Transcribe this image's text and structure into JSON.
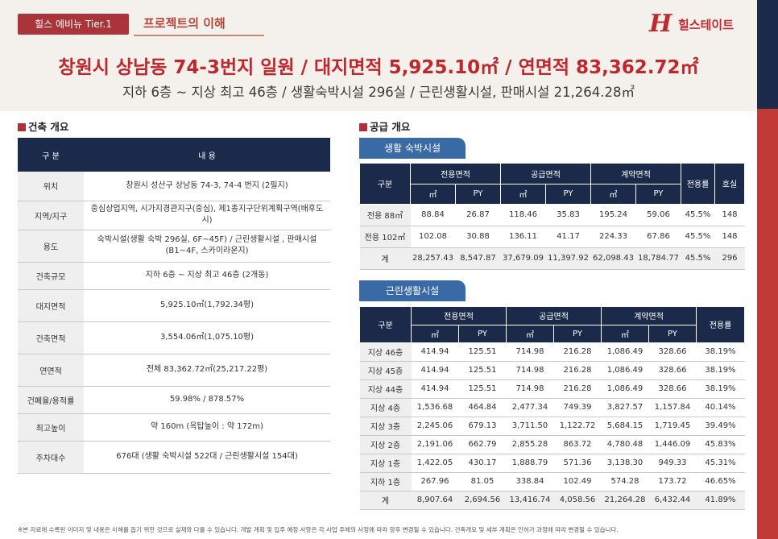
{
  "header": {
    "tier_badge": "힐스 에비뉴 Tier.1",
    "crumb": "프로젝트의 이해",
    "logo_mark": "H",
    "logo_text": "힐스테이트",
    "headline": "창원시 상남동 74-3번지 일원 / 대지면적 5,925.10㎡ / 연면적 83,362.72㎡",
    "subline": "지하 6층 ~ 지상 최고 46층 / 생활숙박시설 296실 / 근린생활시설, 판매시설 21,264.28㎡"
  },
  "overview": {
    "title": "건축 개요",
    "header": [
      "구 분",
      "내 용"
    ],
    "rows": [
      [
        "위치",
        "창원시 성산구 상남동 74-3, 74-4 번지 (2필지)"
      ],
      [
        "지역/지구",
        "중심상업지역, 시가지경관지구(중심), 제1종지구단위계획구역(배후도시)"
      ],
      [
        "용도",
        "숙박시설(생활 숙박 296실, 6F~45F) / 근린생활시설 , 판매시설(B1~4F, 스카이라운지)"
      ],
      [
        "건축규모",
        "지하 6층 ~ 지상 최고 46층 (2개동)"
      ],
      [
        "대지면적",
        "5,925.10㎡(1,792.34평)"
      ],
      [
        "건축면적",
        "3,554.06㎡(1,075.10평)"
      ],
      [
        "연면적",
        "전체 83,362.72㎡(25,217.22평)"
      ],
      [
        "건폐율/용적률",
        "59.98% / 878.57%"
      ],
      [
        "최고높이",
        "약 160m (옥탑높이 : 약 172m)"
      ],
      [
        "주차대수",
        "676대 (생활 숙박시설 522대 / 근린생활시설 154대)"
      ]
    ]
  },
  "supply": {
    "title": "공급 개요",
    "lodging": {
      "tab": "생활 숙박시설",
      "h_category": "구분",
      "h_exclusive": "전용면적",
      "h_supply": "공급면적",
      "h_contract": "계약면적",
      "h_ratio": "전용률",
      "h_rooms": "호실",
      "unit_m2": "㎡",
      "unit_py": "PY",
      "rows": [
        [
          "전용 88㎡",
          "88.84",
          "26.87",
          "118.46",
          "35.83",
          "195.24",
          "59.06",
          "45.5%",
          "148"
        ],
        [
          "전용 102㎡",
          "102.08",
          "30.88",
          "136.11",
          "41.17",
          "224.33",
          "67.86",
          "45.5%",
          "148"
        ],
        [
          "계",
          "28,257.43",
          "8,547.87",
          "37,679.09",
          "11,397.92",
          "62,098.43",
          "18,784.77",
          "45.5%",
          "296"
        ]
      ]
    },
    "retail": {
      "tab": "근린생활시설",
      "h_category": "구분",
      "h_exclusive": "전용면적",
      "h_supply": "공급면적",
      "h_contract": "계약면적",
      "h_ratio": "전용률",
      "unit_m2": "㎡",
      "unit_py": "PY",
      "rows": [
        [
          "지상 46층",
          "414.94",
          "125.51",
          "714.98",
          "216.28",
          "1,086.49",
          "328.66",
          "38.19%"
        ],
        [
          "지상 45층",
          "414.94",
          "125.51",
          "714.98",
          "216.28",
          "1,086.49",
          "328.66",
          "38.19%"
        ],
        [
          "지상 44층",
          "414.94",
          "125.51",
          "714.98",
          "216.28",
          "1,086.49",
          "328.66",
          "38.19%"
        ],
        [
          "지상 4층",
          "1,536.68",
          "464.84",
          "2,477.34",
          "749.39",
          "3,827.57",
          "1,157.84",
          "40.14%"
        ],
        [
          "지상 3층",
          "2,245.06",
          "679.13",
          "3,711.50",
          "1,122.72",
          "5,684.15",
          "1,719.45",
          "39.49%"
        ],
        [
          "지상 2층",
          "2,191.06",
          "662.79",
          "2,855.28",
          "863.72",
          "4,780.48",
          "1,446.09",
          "45.83%"
        ],
        [
          "지상 1층",
          "1,422.05",
          "430.17",
          "1,888.79",
          "571.36",
          "3,138.30",
          "949.33",
          "45.31%"
        ],
        [
          "지하 1층",
          "267.96",
          "81.05",
          "338.84",
          "102.49",
          "574.28",
          "173.72",
          "46.65%"
        ],
        [
          "계",
          "8,907.64",
          "2,694.56",
          "13,416.74",
          "4,058.56",
          "21,264.28",
          "6,432.44",
          "41.89%"
        ]
      ]
    }
  },
  "footnote": "※본 자료에 수록된 이미지 및 내용은 이해를 돕기 위한 것으로 실제와 다를 수 있습니다. 개발 계획 및 입주 예정 사항은 각 사업 주체의 사정에 따라 향후 변경될 수 있습니다. 건축개요 및 세부 계획은 인허가 과정에 따라 변경될 수 있습니다.",
  "colors": {
    "navy": "#1b2a4a",
    "brand_red": "#c0272d",
    "tab_blue": "#3a6aa5",
    "band": "#f4f0ec"
  }
}
